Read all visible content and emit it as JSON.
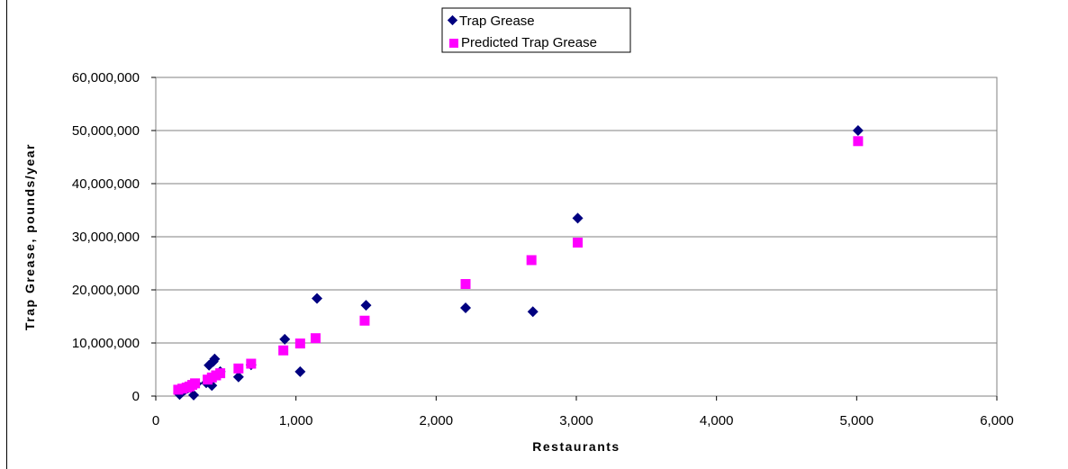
{
  "chart_data": {
    "type": "scatter",
    "xlabel": "Restaurants",
    "ylabel": "Trap Grease, pounds/year",
    "xlim": [
      0,
      6000
    ],
    "ylim": [
      0,
      60000000
    ],
    "x_ticks": [
      0,
      1000,
      2000,
      3000,
      4000,
      5000,
      6000
    ],
    "x_tick_labels": [
      "0",
      "1,000",
      "2,000",
      "3,000",
      "4,000",
      "5,000",
      "6,000"
    ],
    "y_ticks": [
      0,
      10000000,
      20000000,
      30000000,
      40000000,
      50000000,
      60000000
    ],
    "y_tick_labels": [
      "0",
      "10,000,000",
      "20,000,000",
      "30,000,000",
      "40,000,000",
      "50,000,000",
      "60,000,000"
    ],
    "grid": "horizontal",
    "legend_position": "top-center",
    "series": [
      {
        "name": "Trap Grease",
        "marker": "diamond",
        "color": "#000080",
        "points": [
          [
            170,
            300000
          ],
          [
            190,
            800000
          ],
          [
            210,
            1200000
          ],
          [
            230,
            1500000
          ],
          [
            270,
            200000
          ],
          [
            290,
            2300000
          ],
          [
            360,
            2500000
          ],
          [
            380,
            5800000
          ],
          [
            400,
            2000000
          ],
          [
            410,
            6500000
          ],
          [
            420,
            7000000
          ],
          [
            440,
            4000000
          ],
          [
            460,
            4600000
          ],
          [
            590,
            3600000
          ],
          [
            680,
            5900000
          ],
          [
            920,
            10700000
          ],
          [
            1030,
            4600000
          ],
          [
            1150,
            18400000
          ],
          [
            1500,
            17100000
          ],
          [
            2210,
            16600000
          ],
          [
            2690,
            15900000
          ],
          [
            3010,
            33500000
          ],
          [
            5010,
            50000000
          ]
        ]
      },
      {
        "name": "Predicted Trap Grease",
        "marker": "square",
        "color": "#FF00FF",
        "points": [
          [
            160,
            1200000
          ],
          [
            190,
            1400000
          ],
          [
            220,
            1600000
          ],
          [
            240,
            1800000
          ],
          [
            260,
            2100000
          ],
          [
            280,
            2400000
          ],
          [
            370,
            3100000
          ],
          [
            400,
            3500000
          ],
          [
            430,
            3900000
          ],
          [
            460,
            4300000
          ],
          [
            590,
            5200000
          ],
          [
            680,
            6100000
          ],
          [
            910,
            8600000
          ],
          [
            1030,
            9900000
          ],
          [
            1140,
            10900000
          ],
          [
            1490,
            14200000
          ],
          [
            2210,
            21100000
          ],
          [
            2680,
            25600000
          ],
          [
            3010,
            28900000
          ],
          [
            5010,
            48000000
          ]
        ]
      }
    ]
  }
}
